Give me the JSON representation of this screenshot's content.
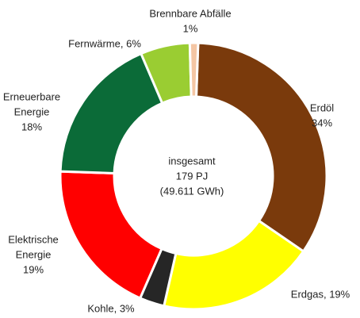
{
  "chart_data": {
    "type": "donut",
    "categories": [
      "Erdöl",
      "Erdgas",
      "Kohle",
      "Elektrische Energie",
      "Erneuerbare Energie",
      "Fernwärme",
      "Brennbare Abfälle"
    ],
    "values": [
      34,
      19,
      3,
      19,
      18,
      6,
      1
    ],
    "value_labels": [
      [
        "Erdöl",
        "34%"
      ],
      [
        "Erdgas, 19%"
      ],
      [
        "Kohle, 3%"
      ],
      [
        "Elektrische",
        "Energie",
        "19%"
      ],
      [
        "Erneuerbare",
        "Energie",
        "18%"
      ],
      [
        "Fernwärme, 6%"
      ],
      [
        "Brennbare Abfälle",
        "1%"
      ]
    ],
    "colors": [
      "#7a3a0c",
      "#ffff00",
      "#262626",
      "#ff0000",
      "#0b6b38",
      "#9acd32",
      "#f4c6a4"
    ],
    "center_text": [
      "insgesamt",
      "179 PJ",
      "(49.611 GWh)"
    ]
  }
}
